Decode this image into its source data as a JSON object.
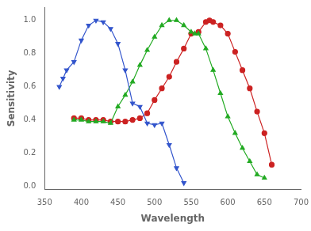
{
  "chart_data": {
    "type": "line",
    "xlabel": "Wavelength",
    "ylabel": "Sensitivity",
    "xlim": [
      350,
      700
    ],
    "xticks": [
      350,
      400,
      450,
      500,
      550,
      600,
      650,
      700
    ],
    "ylim": [
      -0.02,
      1.08
    ],
    "yticks": [
      {
        "value": 0.0,
        "label": "0.0"
      },
      0.2,
      0.4,
      0.6,
      0.8,
      {
        "value": 1.0,
        "label": "1.0"
      }
    ],
    "grid": false,
    "series": [
      {
        "color": "#3355cc",
        "marker": "triangle_down",
        "line_style": "solid",
        "x": [
          370,
          375,
          380,
          390,
          400,
          410,
          420,
          430,
          440,
          450,
          460,
          470,
          480,
          490,
          500,
          510,
          520,
          530,
          540
        ],
        "values": [
          0.6,
          0.65,
          0.7,
          0.75,
          0.88,
          0.97,
          1.0,
          0.99,
          0.95,
          0.86,
          0.7,
          0.5,
          0.48,
          0.38,
          0.37,
          0.38,
          0.25,
          0.11,
          0.02
        ]
      },
      {
        "color": "#22aa22",
        "marker": "triangle",
        "line_style": "solid",
        "x": [
          390,
          400,
          410,
          420,
          430,
          440,
          450,
          460,
          470,
          480,
          490,
          500,
          510,
          520,
          530,
          540,
          550,
          555,
          560,
          570,
          580,
          590,
          600,
          610,
          620,
          630,
          640,
          650
        ],
        "values": [
          0.4,
          0.4,
          0.39,
          0.39,
          0.39,
          0.38,
          0.48,
          0.55,
          0.63,
          0.73,
          0.82,
          0.9,
          0.97,
          1.0,
          1.0,
          0.97,
          0.93,
          0.92,
          0.92,
          0.83,
          0.7,
          0.56,
          0.42,
          0.32,
          0.23,
          0.15,
          0.07,
          0.05
        ]
      },
      {
        "color": "#cc2222",
        "marker": "circle",
        "line_style": "solid",
        "x": [
          390,
          400,
          410,
          420,
          430,
          440,
          450,
          460,
          470,
          480,
          490,
          500,
          510,
          520,
          530,
          540,
          550,
          560,
          570,
          575,
          580,
          590,
          600,
          610,
          620,
          630,
          640,
          650,
          660
        ],
        "values": [
          0.41,
          0.41,
          0.4,
          0.4,
          0.4,
          0.39,
          0.39,
          0.39,
          0.4,
          0.41,
          0.44,
          0.52,
          0.59,
          0.66,
          0.75,
          0.83,
          0.92,
          0.93,
          0.99,
          1.0,
          0.99,
          0.97,
          0.92,
          0.81,
          0.7,
          0.59,
          0.45,
          0.32,
          0.13
        ]
      }
    ]
  }
}
